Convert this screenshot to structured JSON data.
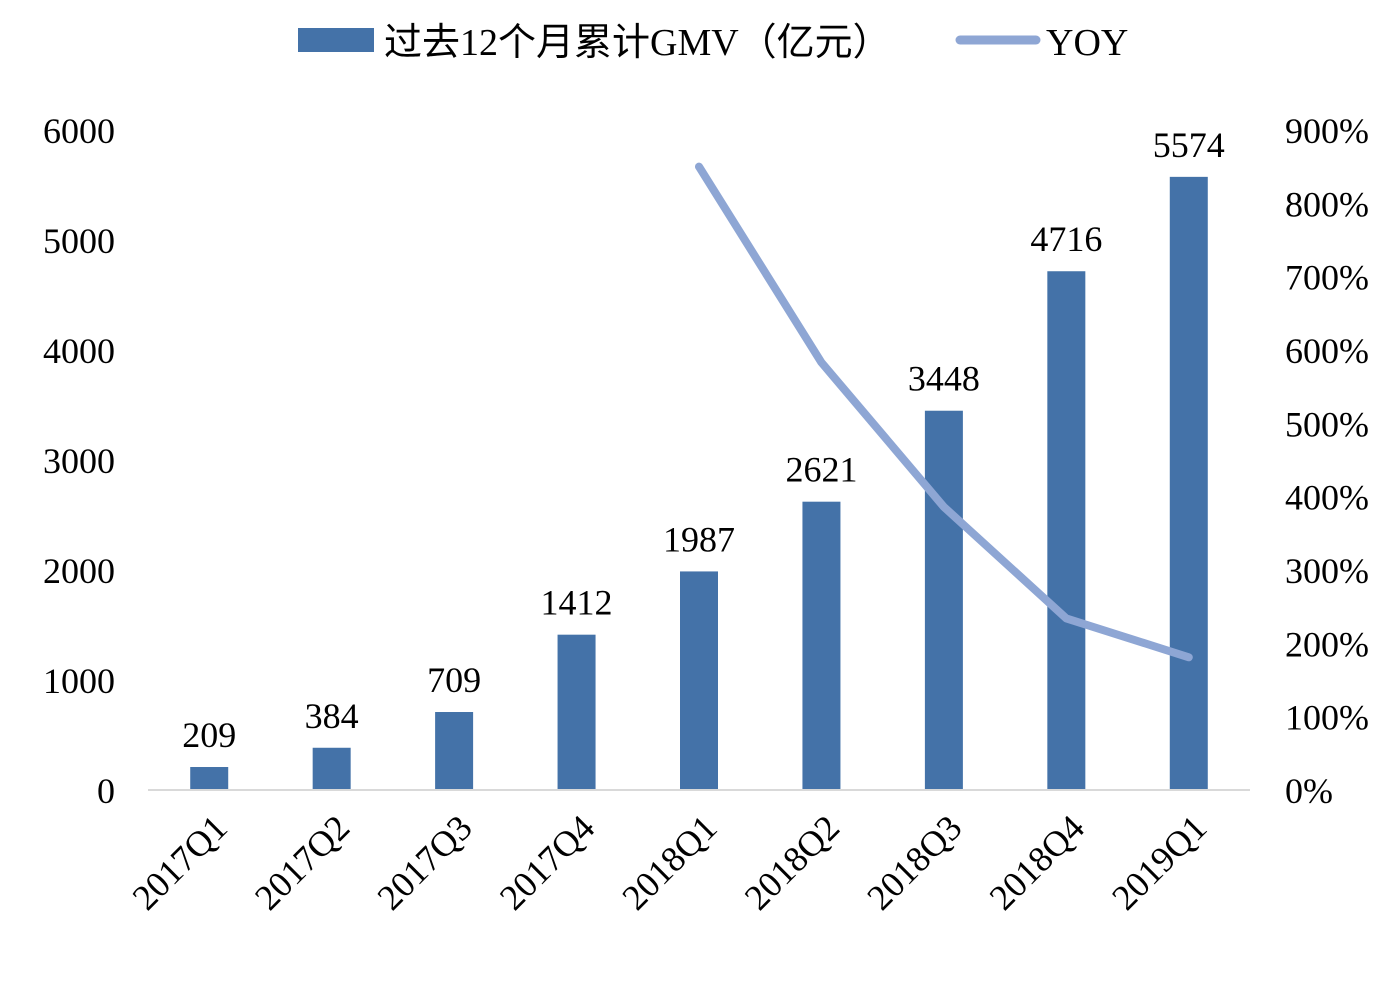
{
  "chart_data": {
    "type": "bar",
    "categories": [
      "2017Q1",
      "2017Q2",
      "2017Q3",
      "2017Q4",
      "2018Q1",
      "2018Q2",
      "2018Q3",
      "2018Q4",
      "2019Q1"
    ],
    "series": [
      {
        "name": "过去12个月累计GMV（亿元）",
        "type": "bar",
        "axis": "left",
        "values": [
          209,
          384,
          709,
          1412,
          1987,
          2621,
          3448,
          4716,
          5574
        ],
        "data_labels": [
          "209",
          "384",
          "709",
          "1412",
          "1987",
          "2621",
          "3448",
          "4716",
          "5574"
        ]
      },
      {
        "name": "YOY",
        "type": "line",
        "axis": "right",
        "values": [
          null,
          null,
          null,
          null,
          850,
          583,
          386,
          234,
          181
        ]
      }
    ],
    "y_left": {
      "ylim": [
        0,
        6000
      ],
      "ticks": [
        "0",
        "1000",
        "2000",
        "3000",
        "4000",
        "5000",
        "6000"
      ]
    },
    "y_right": {
      "ylim": [
        0,
        900
      ],
      "ticks": [
        "0%",
        "100%",
        "200%",
        "300%",
        "400%",
        "500%",
        "600%",
        "700%",
        "800%",
        "900%"
      ]
    },
    "legend": "top",
    "grid": false,
    "colors": {
      "bar": "#4472A8",
      "line": "#8EA6D4",
      "axis": "#D9D9D9"
    }
  }
}
